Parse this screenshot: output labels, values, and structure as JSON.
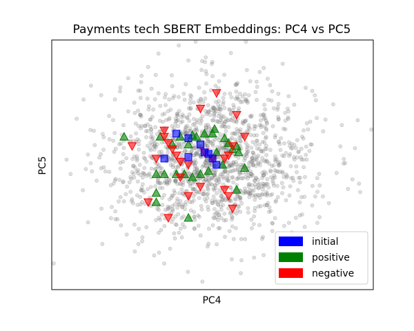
{
  "chart_data": {
    "type": "scatter",
    "title": "Payments tech SBERT Embeddings: PC4 vs PC5",
    "xlabel": "PC4",
    "ylabel": "PC5",
    "xlim": [
      -4.0,
      4.0
    ],
    "ylim": [
      -4.0,
      4.0
    ],
    "grid": false,
    "ticks_visible": false,
    "legend": {
      "placement": "bottom-right",
      "entries": [
        {
          "label": "initial",
          "color": "#0000ff"
        },
        {
          "label": "positive",
          "color": "#008000"
        },
        {
          "label": "negative",
          "color": "#ff0000"
        }
      ]
    },
    "background_points": {
      "count": 1500,
      "color": "#808080",
      "alpha": 0.25,
      "marker": "circle",
      "center": [
        0.0,
        0.2
      ],
      "spread": [
        1.25,
        1.2
      ]
    },
    "series": [
      {
        "name": "initial",
        "marker": "square",
        "color": "#0000ff",
        "x": [
          -0.9,
          -0.6,
          -1.2,
          -0.6,
          -0.3,
          -0.2,
          -0.1,
          0.0,
          0.1
        ],
        "y": [
          1.0,
          0.85,
          0.2,
          0.25,
          0.65,
          0.4,
          0.35,
          0.2,
          0.0
        ]
      },
      {
        "name": "positive",
        "marker": "triangle-up",
        "color": "#008000",
        "x": [
          -2.2,
          -1.3,
          -1.0,
          -0.8,
          -0.6,
          -0.5,
          -0.4,
          -0.2,
          0.0,
          0.05,
          0.3,
          0.4,
          0.5,
          0.6,
          0.65,
          0.1,
          -1.4,
          -1.2,
          -0.9,
          -0.7,
          -0.5,
          -0.3,
          -0.1,
          0.25,
          0.6,
          -1.4,
          -1.4,
          -0.6,
          0.8
        ],
        "y": [
          0.9,
          0.9,
          0.65,
          0.9,
          0.65,
          0.95,
          0.9,
          1.0,
          1.0,
          1.15,
          0.85,
          0.7,
          0.5,
          0.6,
          0.4,
          0.4,
          -0.3,
          -0.3,
          -0.3,
          -0.3,
          -0.4,
          -0.3,
          -0.2,
          0.0,
          -0.8,
          -0.9,
          -1.2,
          -1.7,
          -0.1
        ]
      },
      {
        "name": "negative",
        "marker": "triangle-down",
        "color": "#ff0000",
        "x": [
          0.1,
          -0.3,
          0.6,
          0.8,
          -1.2,
          -1.2,
          -1.1,
          -1.0,
          -0.9,
          -0.8,
          -0.6,
          -0.2,
          0.0,
          0.3,
          0.4,
          0.5,
          -2.0,
          -1.4,
          -0.8,
          -0.3,
          -0.6,
          -1.6,
          -1.1,
          0.3,
          0.4,
          0.5
        ],
        "y": [
          2.3,
          1.8,
          1.6,
          0.9,
          1.1,
          0.9,
          0.7,
          0.5,
          0.3,
          0.1,
          0.0,
          0.4,
          0.2,
          0.2,
          0.3,
          0.6,
          0.6,
          0.2,
          -0.4,
          -0.7,
          -1.0,
          -1.2,
          -1.7,
          -0.8,
          -1.0,
          -1.4
        ]
      }
    ]
  }
}
